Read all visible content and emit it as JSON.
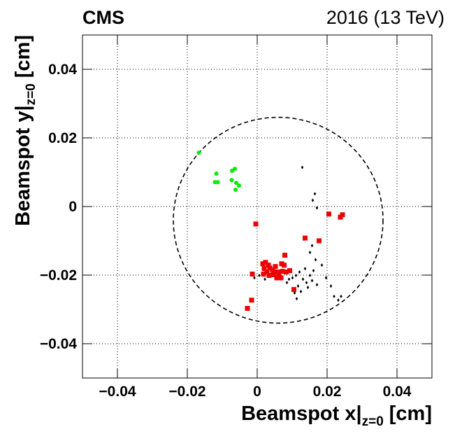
{
  "chart_data": {
    "type": "scatter",
    "title": "CMS",
    "subtitle": "2016 (13 TeV)",
    "x_label": {
      "main": "Beamspot x",
      "bar": "|",
      "sub": "z=0",
      "unit": "[cm]"
    },
    "y_label": {
      "main": "Beamspot y",
      "bar": "|",
      "sub": "z=0",
      "unit": "[cm]"
    },
    "xlim": [
      -0.05,
      0.05
    ],
    "ylim": [
      -0.05,
      0.05
    ],
    "xticks": [
      {
        "value": -0.04,
        "label": "−0.04"
      },
      {
        "value": -0.02,
        "label": "−0.02"
      },
      0,
      0.02,
      0.04
    ],
    "yticks": [
      {
        "value": -0.04,
        "label": "−0.04"
      },
      {
        "value": -0.02,
        "label": "−0.02"
      },
      0,
      0.02,
      0.04
    ],
    "grid": true,
    "circle": {
      "x": 0.006,
      "y": -0.004,
      "r": 0.03,
      "color": "#000000"
    },
    "series": [
      {
        "color": "#00ee00",
        "marker": "circle",
        "x": [
          -0.0167,
          -0.0117,
          -0.0121,
          -0.0113,
          -0.0072,
          -0.0064,
          -0.0073,
          -0.006,
          -0.0052,
          -0.0062
        ],
        "y": [
          0.0157,
          0.0096,
          0.0071,
          0.0071,
          0.0104,
          0.011,
          0.0077,
          0.0069,
          0.0061,
          0.0049
        ]
      },
      {
        "color": "#ee0000",
        "marker": "square",
        "x": [
          -0.0004,
          -0.0014,
          -0.0016,
          -0.0028,
          0.0137,
          0.0177,
          0.0205,
          0.0238,
          0.0244,
          0.0105,
          0.0079,
          0.0016,
          0.0024,
          0.0032,
          0.002,
          0.0028,
          0.0036,
          0.0044,
          0.0052,
          0.0058,
          0.0062,
          0.007,
          0.0072,
          0.0083,
          0.0077,
          0.0034,
          0.0046,
          0.0018,
          0.0056,
          0.0093,
          0.0068
        ],
        "y": [
          -0.0051,
          -0.0197,
          -0.0273,
          -0.0297,
          -0.0092,
          -0.01,
          -0.0022,
          -0.0031,
          -0.0024,
          -0.0242,
          -0.0142,
          -0.0167,
          -0.0163,
          -0.0171,
          -0.0181,
          -0.0191,
          -0.0179,
          -0.0185,
          -0.0175,
          -0.0191,
          -0.0201,
          -0.0167,
          -0.0189,
          -0.0191,
          -0.0171,
          -0.0201,
          -0.0199,
          -0.0197,
          -0.0208,
          -0.0187,
          -0.0208
        ]
      },
      {
        "color": "#000000",
        "marker": "diamond",
        "x": [
          0.0129,
          0.0165,
          0.0159,
          0.0171,
          0.0157,
          0.0151,
          0.0167,
          0.0185,
          0.0197,
          0.0211,
          0.022,
          0.0232,
          0.024,
          0.0101,
          0.0111,
          0.0121,
          0.0131,
          0.0141,
          0.0117,
          0.0151,
          0.0161,
          0.0137,
          0.0107,
          0.0125,
          0.0145,
          0.0091,
          0.0085,
          0.0157,
          0.0171,
          0.0113,
          0.0022,
          -0.0008,
          0.0006
        ],
        "y": [
          0.0114,
          0.0037,
          0.0018,
          -0.0004,
          -0.0114,
          -0.0134,
          -0.0155,
          -0.0171,
          -0.0208,
          -0.0232,
          -0.0262,
          -0.0273,
          -0.0262,
          -0.0208,
          -0.0201,
          -0.0191,
          -0.0212,
          -0.0222,
          -0.0232,
          -0.0201,
          -0.0187,
          -0.0181,
          -0.0252,
          -0.0248,
          -0.0236,
          -0.0212,
          -0.0222,
          -0.0216,
          -0.0228,
          -0.0269,
          -0.0212,
          -0.0208,
          -0.0201
        ]
      }
    ]
  }
}
